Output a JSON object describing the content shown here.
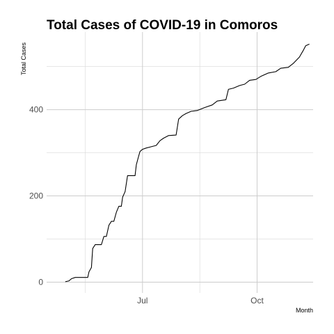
{
  "chart_data": {
    "type": "line",
    "title": "Total Cases of COVID-19 in Comoros",
    "xlabel": "Month",
    "ylabel": "Total Cases",
    "x_ticks": [
      {
        "label": "Jul",
        "date": "2020-07-01"
      },
      {
        "label": "Oct",
        "date": "2020-10-01"
      }
    ],
    "y_ticks": [
      0,
      200,
      400
    ],
    "xlim": [
      "2020-04-15",
      "2020-11-15"
    ],
    "ylim": [
      -25,
      580
    ],
    "grid": true,
    "series": [
      {
        "color": "#000000",
        "points": [
          [
            "2020-04-30",
            1
          ],
          [
            "2020-05-03",
            3
          ],
          [
            "2020-05-05",
            8
          ],
          [
            "2020-05-08",
            11
          ],
          [
            "2020-05-18",
            11
          ],
          [
            "2020-05-19",
            24
          ],
          [
            "2020-05-21",
            34
          ],
          [
            "2020-05-22",
            78
          ],
          [
            "2020-05-24",
            87
          ],
          [
            "2020-05-29",
            87
          ],
          [
            "2020-05-31",
            106
          ],
          [
            "2020-06-02",
            106
          ],
          [
            "2020-06-04",
            132
          ],
          [
            "2020-06-06",
            141
          ],
          [
            "2020-06-08",
            141
          ],
          [
            "2020-06-10",
            162
          ],
          [
            "2020-06-12",
            176
          ],
          [
            "2020-06-14",
            176
          ],
          [
            "2020-06-15",
            197
          ],
          [
            "2020-06-17",
            210
          ],
          [
            "2020-06-19",
            247
          ],
          [
            "2020-06-25",
            247
          ],
          [
            "2020-06-26",
            272
          ],
          [
            "2020-06-28",
            293
          ],
          [
            "2020-06-29",
            303
          ],
          [
            "2020-07-01",
            308
          ],
          [
            "2020-07-04",
            311
          ],
          [
            "2020-07-08",
            314
          ],
          [
            "2020-07-12",
            317
          ],
          [
            "2020-07-15",
            328
          ],
          [
            "2020-07-18",
            334
          ],
          [
            "2020-07-22",
            340
          ],
          [
            "2020-07-28",
            341
          ],
          [
            "2020-07-30",
            378
          ],
          [
            "2020-08-02",
            386
          ],
          [
            "2020-08-05",
            391
          ],
          [
            "2020-08-09",
            396
          ],
          [
            "2020-08-14",
            398
          ],
          [
            "2020-08-20",
            405
          ],
          [
            "2020-08-26",
            411
          ],
          [
            "2020-08-30",
            420
          ],
          [
            "2020-09-06",
            423
          ],
          [
            "2020-09-08",
            447
          ],
          [
            "2020-09-12",
            450
          ],
          [
            "2020-09-17",
            456
          ],
          [
            "2020-09-21",
            459
          ],
          [
            "2020-09-25",
            468
          ],
          [
            "2020-09-30",
            470
          ],
          [
            "2020-10-04",
            477
          ],
          [
            "2020-10-10",
            485
          ],
          [
            "2020-10-16",
            488
          ],
          [
            "2020-10-20",
            496
          ],
          [
            "2020-10-26",
            498
          ],
          [
            "2020-10-30",
            507
          ],
          [
            "2020-11-04",
            522
          ],
          [
            "2020-11-07",
            537
          ],
          [
            "2020-11-09",
            548
          ],
          [
            "2020-11-12",
            552
          ]
        ]
      }
    ]
  }
}
